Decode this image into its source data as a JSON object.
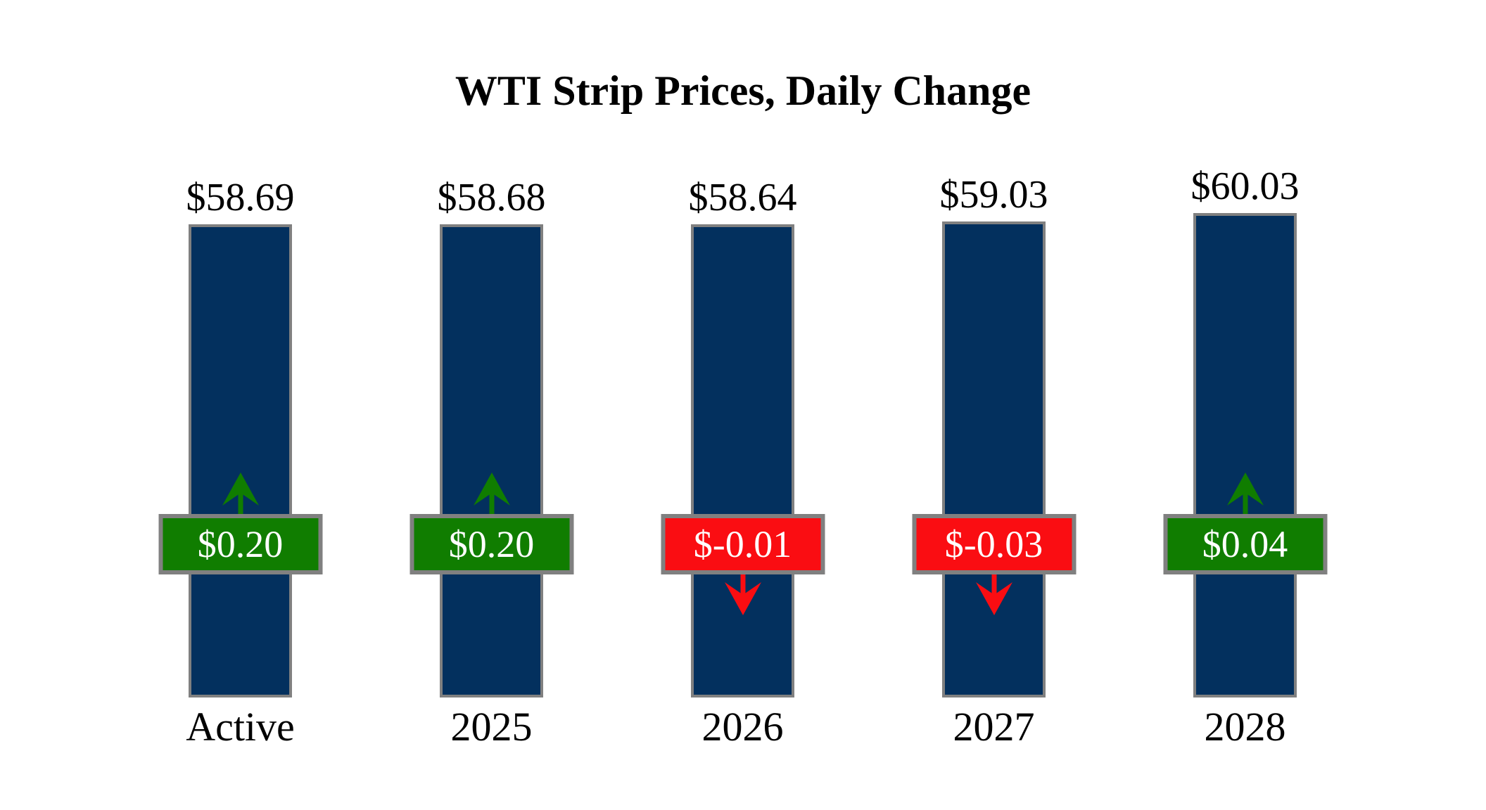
{
  "title": "WTI Strip Prices, Daily Change",
  "chart_data": {
    "type": "bar",
    "title": "WTI Strip Prices, Daily Change",
    "categories": [
      "Active",
      "2025",
      "2026",
      "2027",
      "2028"
    ],
    "series": [
      {
        "name": "Strip Price",
        "values": [
          58.69,
          58.68,
          58.64,
          59.03,
          60.03
        ]
      },
      {
        "name": "Daily Change",
        "values": [
          0.2,
          0.2,
          -0.01,
          -0.03,
          0.04
        ]
      }
    ],
    "bars": [
      {
        "category": "Active",
        "price": 58.69,
        "price_label": "$58.69",
        "change": 0.2,
        "change_label": "$0.20",
        "direction": "up"
      },
      {
        "category": "2025",
        "price": 58.68,
        "price_label": "$58.68",
        "change": 0.2,
        "change_label": "$0.20",
        "direction": "up"
      },
      {
        "category": "2026",
        "price": 58.64,
        "price_label": "$58.64",
        "change": -0.01,
        "change_label": "$-0.01",
        "direction": "down"
      },
      {
        "category": "2027",
        "price": 59.03,
        "price_label": "$59.03",
        "change": -0.03,
        "change_label": "$-0.03",
        "direction": "down"
      },
      {
        "category": "2028",
        "price": 60.03,
        "price_label": "$60.03",
        "change": 0.04,
        "change_label": "$0.04",
        "direction": "up"
      }
    ],
    "xlabel": "",
    "ylabel": "",
    "y_axis_hidden": true,
    "ylim": [
      0,
      86.5
    ],
    "grid": false,
    "legend": false,
    "colors": {
      "bar": "#03305e",
      "border": "#808080",
      "up": "#107d00",
      "down": "#fa0d12",
      "value_text": "#ffffff",
      "label_text": "#000000"
    }
  }
}
